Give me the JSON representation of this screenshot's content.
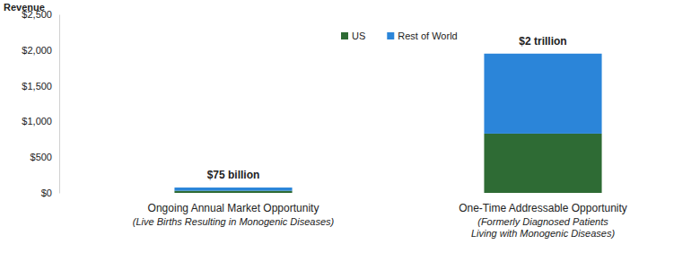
{
  "chart_data": {
    "type": "bar",
    "stacked": true,
    "y_label": "Revenue",
    "categories": [
      "Ongoing Annual Market Opportunity",
      "One-Time Addressable Opportunity"
    ],
    "category_notes": [
      "(Live Births Resulting in Monogenic Diseases)",
      "(Formerly Diagnosed Patients Living with Monogenic Diseases)"
    ],
    "series": [
      {
        "name": "US",
        "color": "#2e6b34",
        "values": [
          30,
          830
        ]
      },
      {
        "name": "Rest of World",
        "color": "#2b85d9",
        "values": [
          45,
          1120
        ]
      }
    ],
    "totals": [
      75,
      1950
    ],
    "total_labels": [
      "$75 billion",
      "$2 trillion"
    ],
    "ylim": [
      0,
      2500
    ],
    "yticks": [
      {
        "value": 0,
        "label": "$0"
      },
      {
        "value": 500,
        "label": "$500"
      },
      {
        "value": 1000,
        "label": "$1,000"
      },
      {
        "value": 1500,
        "label": "$1,500"
      },
      {
        "value": 2000,
        "label": "$2,000"
      },
      {
        "value": 2500,
        "label": "$2,500"
      }
    ],
    "legend": "top",
    "grid": false
  }
}
